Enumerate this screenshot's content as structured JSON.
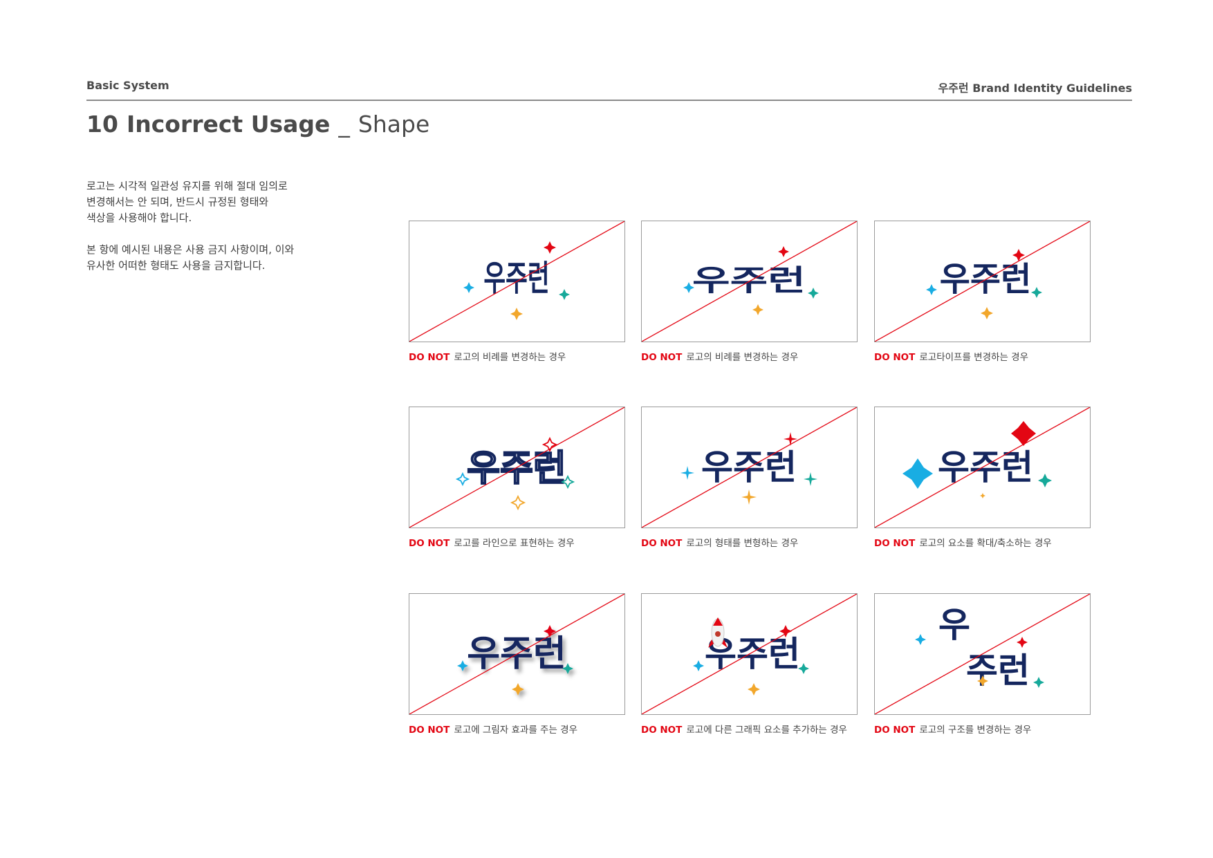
{
  "header": {
    "section": "Basic System",
    "document": "우주런 Brand Identity Guidelines"
  },
  "title": {
    "number": "10",
    "main": "Incorrect Usage",
    "separator": "_",
    "sub": "Shape"
  },
  "description": {
    "paragraph1": "로고는 시각적 일관성 유지를 위해 절대 임의로\n변경해서는 안 되며, 반드시 규정된 형태와\n색상을 사용해야 합니다.",
    "paragraph2": "본 항에 예시된 내용은 사용 금지 사항이며, 이와\n유사한 어떠한 형태도 사용을 금지합니다."
  },
  "logo": {
    "wordmark": "우주런"
  },
  "do_not_label": "DO NOT",
  "colors": {
    "navy": "#14265e",
    "red": "#e30613",
    "cyan": "#19ade3",
    "teal": "#16a99a",
    "orange": "#f2a72c",
    "strike": "#e30613"
  },
  "examples": [
    {
      "caption": "로고의 비례를 변경하는 경우"
    },
    {
      "caption": "로고의 비례를 변경하는 경우"
    },
    {
      "caption": "로고타이프를 변경하는 경우"
    },
    {
      "caption": "로고를 라인으로 표현하는 경우"
    },
    {
      "caption": "로고의 형태를 변형하는 경우"
    },
    {
      "caption": "로고의 요소를 확대/축소하는 경우"
    },
    {
      "caption": "로고에 그림자 효과를 주는 경우"
    },
    {
      "caption": "로고에 다른 그래픽 요소를 추가하는 경우"
    },
    {
      "caption": "로고의 구조를 변경하는 경우"
    }
  ]
}
